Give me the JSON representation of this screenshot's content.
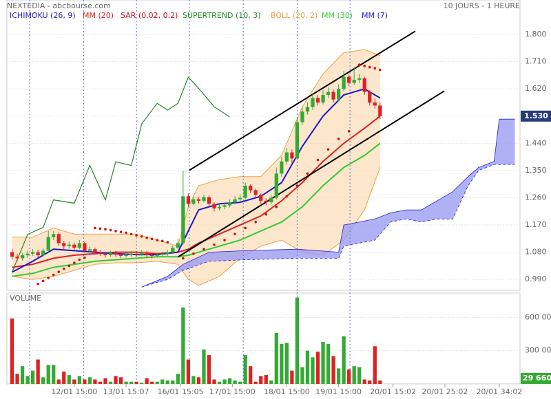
{
  "chart_data": [
    {
      "type": "candlestick",
      "title": "NEXTEDIA - abcbourse.com",
      "subtitle": "10 JOURS - 1 HEURE",
      "xlim": [
        -1,
        98
      ],
      "ylim": [
        0.954,
        1.914
      ],
      "yticks": [
        {
          "value": 0.99,
          "label": "0.990"
        },
        {
          "value": 1.08,
          "label": "1.080"
        },
        {
          "value": 1.17,
          "label": "1.170"
        },
        {
          "value": 1.26,
          "label": "1.260"
        },
        {
          "value": 1.35,
          "label": "1.350"
        },
        {
          "value": 1.44,
          "label": "1.440"
        },
        {
          "value": 1.53,
          "label": "1.530"
        },
        {
          "value": 1.62,
          "label": "1.620"
        },
        {
          "value": 1.71,
          "label": "1.710"
        },
        {
          "value": 1.8,
          "label": "1.800"
        }
      ],
      "grid": true,
      "session_breaks": [
        3.4,
        13.8,
        24,
        34.2,
        44.6,
        55,
        65.2
      ],
      "up_color": "#33aa33",
      "down_color": "#dd2222",
      "ohlc": {
        "open": [
          1.08,
          1.065,
          1.06,
          1.07,
          1.075,
          1.08,
          1.07,
          1.085,
          1.13,
          1.14,
          1.11,
          1.1,
          1.105,
          1.095,
          1.11,
          1.085,
          1.09,
          1.08,
          1.075,
          1.07,
          1.078,
          1.072,
          1.068,
          1.07,
          1.075,
          1.072,
          1.078,
          1.07,
          1.068,
          1.072,
          1.075,
          1.08,
          1.095,
          1.11,
          1.265,
          1.24,
          1.255,
          1.25,
          1.262,
          1.24,
          1.225,
          1.23,
          1.235,
          1.245,
          1.255,
          1.26,
          1.3,
          1.285,
          1.27,
          1.25,
          1.245,
          1.26,
          1.34,
          1.38,
          1.41,
          1.39,
          1.51,
          1.545,
          1.56,
          1.59,
          1.575,
          1.6,
          1.61,
          1.585,
          1.62,
          1.66,
          1.64,
          1.65,
          1.655,
          1.61,
          1.575,
          1.565
        ],
        "high": [
          1.09,
          1.075,
          1.078,
          1.085,
          1.09,
          1.088,
          1.095,
          1.15,
          1.15,
          1.145,
          1.118,
          1.115,
          1.112,
          1.12,
          1.115,
          1.098,
          1.095,
          1.088,
          1.082,
          1.085,
          1.085,
          1.08,
          1.078,
          1.085,
          1.082,
          1.088,
          1.085,
          1.078,
          1.08,
          1.082,
          1.088,
          1.102,
          1.125,
          1.35,
          1.275,
          1.265,
          1.262,
          1.27,
          1.268,
          1.245,
          1.24,
          1.245,
          1.255,
          1.265,
          1.272,
          1.31,
          1.305,
          1.29,
          1.275,
          1.258,
          1.27,
          1.36,
          1.395,
          1.425,
          1.42,
          1.525,
          1.56,
          1.575,
          1.605,
          1.6,
          1.615,
          1.625,
          1.618,
          1.635,
          1.68,
          1.668,
          1.69,
          1.67,
          1.66,
          1.615,
          1.59,
          1.575
        ],
        "low": [
          1.055,
          1.05,
          1.052,
          1.062,
          1.068,
          1.062,
          1.065,
          1.08,
          1.12,
          1.1,
          1.09,
          1.092,
          1.088,
          1.09,
          1.078,
          1.078,
          1.072,
          1.068,
          1.062,
          1.065,
          1.065,
          1.06,
          1.062,
          1.065,
          1.065,
          1.068,
          1.062,
          1.06,
          1.062,
          1.065,
          1.068,
          1.075,
          1.09,
          1.105,
          1.23,
          1.235,
          1.24,
          1.245,
          1.232,
          1.215,
          1.218,
          1.222,
          1.228,
          1.238,
          1.248,
          1.255,
          1.275,
          1.26,
          1.24,
          1.235,
          1.24,
          1.255,
          1.33,
          1.37,
          1.375,
          1.385,
          1.5,
          1.535,
          1.55,
          1.565,
          1.568,
          1.59,
          1.575,
          1.578,
          1.612,
          1.63,
          1.632,
          1.64,
          1.6,
          1.565,
          1.555,
          1.52
        ],
        "close": [
          1.065,
          1.06,
          1.07,
          1.075,
          1.08,
          1.07,
          1.085,
          1.13,
          1.14,
          1.11,
          1.1,
          1.105,
          1.095,
          1.11,
          1.085,
          1.09,
          1.08,
          1.075,
          1.07,
          1.078,
          1.072,
          1.068,
          1.07,
          1.075,
          1.072,
          1.078,
          1.07,
          1.068,
          1.072,
          1.075,
          1.08,
          1.095,
          1.11,
          1.265,
          1.24,
          1.255,
          1.25,
          1.262,
          1.24,
          1.225,
          1.23,
          1.235,
          1.245,
          1.255,
          1.26,
          1.3,
          1.285,
          1.27,
          1.25,
          1.245,
          1.26,
          1.34,
          1.38,
          1.41,
          1.39,
          1.51,
          1.545,
          1.56,
          1.59,
          1.575,
          1.6,
          1.61,
          1.585,
          1.62,
          1.66,
          1.64,
          1.65,
          1.655,
          1.61,
          1.575,
          1.565,
          1.53
        ]
      },
      "last_price": {
        "value": 1.53,
        "label": "1.530"
      },
      "trendlines": [
        {
          "color": "#000000",
          "x": [
            34.2,
            77.8
          ],
          "values": [
            1.351,
            1.811
          ]
        },
        {
          "color": "#000000",
          "x": [
            32,
            83.4
          ],
          "values": [
            1.064,
            1.613
          ]
        }
      ],
      "series": [
        {
          "name": "ICHIMOKU (26, 9)",
          "color": "#2222cc",
          "fill": "#9c9cf2",
          "kind": "cloud",
          "x": [
            25,
            30,
            33,
            38,
            45,
            55,
            63,
            64,
            70,
            73,
            76,
            79,
            82,
            85,
            88,
            90,
            93,
            94,
            97
          ],
          "span_a": [
            0.965,
            1.0,
            1.04,
            1.08,
            1.085,
            1.09,
            1.08,
            1.17,
            1.19,
            1.21,
            1.22,
            1.22,
            1.25,
            1.28,
            1.33,
            1.36,
            1.38,
            1.52,
            1.52
          ],
          "span_b": [
            0.965,
            0.99,
            1.02,
            1.05,
            1.055,
            1.06,
            1.06,
            1.1,
            1.12,
            1.18,
            1.19,
            1.18,
            1.19,
            1.19,
            1.3,
            1.35,
            1.37,
            1.37,
            1.37
          ]
        },
        {
          "name": "MM (20)",
          "color": "#dd2222",
          "kind": "line",
          "x": [
            0,
            4,
            8,
            12,
            16,
            20,
            24,
            28,
            32,
            34,
            36,
            40,
            44,
            48,
            52,
            56,
            60,
            64,
            68,
            71
          ],
          "values": [
            1.03,
            1.04,
            1.06,
            1.07,
            1.075,
            1.08,
            1.08,
            1.075,
            1.08,
            1.09,
            1.11,
            1.14,
            1.17,
            1.2,
            1.25,
            1.31,
            1.38,
            1.44,
            1.49,
            1.53
          ]
        },
        {
          "name": "SAR (0.02, 0.2)",
          "color": "#cc1111",
          "kind": "dots",
          "x": [
            5,
            6,
            7,
            8,
            9,
            10,
            11,
            12,
            13,
            14,
            16,
            17,
            18,
            19,
            20,
            21,
            22,
            23,
            24,
            25,
            26,
            27,
            28,
            29,
            30,
            33,
            35,
            37,
            39,
            41,
            43,
            45,
            47,
            49,
            51,
            53,
            55,
            57,
            59,
            61,
            63,
            65,
            67,
            68,
            69,
            70,
            71
          ],
          "values": [
            0.975,
            0.985,
            0.995,
            1.005,
            1.015,
            1.025,
            1.035,
            1.045,
            1.055,
            1.062,
            1.16,
            1.158,
            1.156,
            1.153,
            1.15,
            1.147,
            1.144,
            1.14,
            1.136,
            1.132,
            1.128,
            1.124,
            1.12,
            1.117,
            1.113,
            1.06,
            1.075,
            1.09,
            1.105,
            1.12,
            1.14,
            1.16,
            1.18,
            1.205,
            1.23,
            1.265,
            1.3,
            1.34,
            1.385,
            1.42,
            1.455,
            1.48,
            1.7,
            1.696,
            1.692,
            1.688,
            1.683
          ]
        },
        {
          "name": "SUPERTREND (10, 3)",
          "color": "#228822",
          "kind": "line",
          "x": [
            0,
            3,
            6,
            8,
            12,
            15,
            18,
            20,
            23,
            25,
            28,
            30,
            32,
            34,
            36,
            39,
            42
          ],
          "values": [
            1.014,
            1.139,
            1.162,
            1.253,
            1.242,
            1.367,
            1.253,
            1.379,
            1.367,
            1.504,
            1.572,
            1.55,
            1.572,
            1.659,
            1.622,
            1.561,
            1.527
          ]
        },
        {
          "name": "BOLL (20, 2)",
          "color": "#f0a040",
          "fill": "#fbd9b0",
          "kind": "band",
          "x": [
            0,
            4,
            8,
            12,
            16,
            20,
            24,
            28,
            32,
            34,
            36,
            40,
            44,
            48,
            52,
            56,
            60,
            64,
            68,
            71
          ],
          "upper": [
            1.13,
            1.13,
            1.16,
            1.14,
            1.14,
            1.14,
            1.14,
            1.12,
            1.1,
            1.23,
            1.3,
            1.32,
            1.33,
            1.33,
            1.4,
            1.56,
            1.67,
            1.74,
            1.75,
            1.73
          ],
          "lower": [
            1.0,
            0.99,
            1.0,
            1.02,
            1.04,
            1.045,
            1.045,
            1.05,
            1.04,
            0.99,
            0.97,
            1.0,
            1.06,
            1.1,
            1.12,
            1.08,
            1.07,
            1.12,
            1.22,
            1.36
          ]
        },
        {
          "name": "MM (30)",
          "color": "#33cc33",
          "kind": "line",
          "x": [
            0,
            4,
            8,
            12,
            16,
            20,
            24,
            28,
            32,
            34,
            36,
            40,
            44,
            48,
            52,
            56,
            60,
            64,
            68,
            71
          ],
          "values": [
            1.0,
            1.01,
            1.03,
            1.04,
            1.05,
            1.055,
            1.06,
            1.065,
            1.065,
            1.07,
            1.08,
            1.1,
            1.12,
            1.15,
            1.18,
            1.23,
            1.3,
            1.36,
            1.4,
            1.44
          ]
        },
        {
          "name": "MM (7)",
          "color": "#1a1acc",
          "kind": "line",
          "x": [
            0,
            4,
            8,
            12,
            16,
            20,
            24,
            28,
            32,
            34,
            36,
            40,
            44,
            48,
            52,
            56,
            60,
            64,
            68,
            71
          ],
          "values": [
            1.014,
            1.05,
            1.09,
            1.085,
            1.08,
            1.075,
            1.072,
            1.072,
            1.08,
            1.15,
            1.22,
            1.24,
            1.245,
            1.265,
            1.31,
            1.43,
            1.53,
            1.6,
            1.62,
            1.59
          ]
        }
      ]
    },
    {
      "type": "volume",
      "title": "VOLUME",
      "xlim": [
        -1,
        98
      ],
      "ylim": [
        0,
        820000
      ],
      "yticks": [
        {
          "value": 300000,
          "label": "300 000"
        },
        {
          "value": 600000,
          "label": "600 000"
        }
      ],
      "xticks": [
        {
          "value": 12,
          "label": "12/01 15:00"
        },
        {
          "value": 22,
          "label": "13/01 15:07"
        },
        {
          "value": 32.5,
          "label": "16/01 15:05"
        },
        {
          "value": 42.5,
          "label": "17/01 15:00"
        },
        {
          "value": 53,
          "label": "18/01 15:00"
        },
        {
          "value": 63,
          "label": "19/01 15:00"
        },
        {
          "value": 73.5,
          "label": "20/01 15:02"
        },
        {
          "value": 83.5,
          "label": "20/01 25:02"
        },
        {
          "value": 94,
          "label": "20/01 34:02"
        }
      ],
      "values": [
        590000,
        90000,
        160000,
        70000,
        120000,
        220000,
        60000,
        170000,
        170000,
        40000,
        110000,
        80000,
        40000,
        70000,
        40000,
        60000,
        40000,
        20000,
        50000,
        20000,
        70000,
        60000,
        20000,
        20000,
        20000,
        10000,
        50000,
        20000,
        20000,
        40000,
        30000,
        30000,
        90000,
        690000,
        220000,
        70000,
        60000,
        310000,
        260000,
        40000,
        20000,
        40000,
        50000,
        30000,
        20000,
        260000,
        160000,
        20000,
        70000,
        80000,
        30000,
        460000,
        360000,
        370000,
        120000,
        780000,
        150000,
        300000,
        240000,
        290000,
        380000,
        360000,
        250000,
        140000,
        430000,
        130000,
        160000,
        150000,
        40000,
        30000,
        340000,
        29660
      ],
      "last_volume": {
        "value": 29660,
        "label": "29 660"
      }
    }
  ]
}
